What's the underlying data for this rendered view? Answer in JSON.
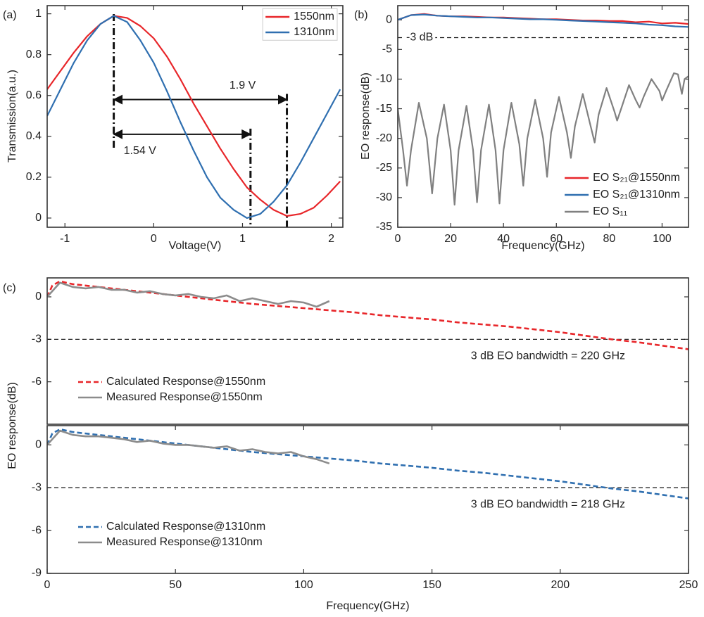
{
  "chart_data": [
    {
      "type": "line",
      "panel_label": "(a)",
      "xlabel": "Voltage(V)",
      "ylabel": "Transmission(a.u.)",
      "xlim": [
        -1.2,
        2.13
      ],
      "ylim": [
        -0.045,
        1.04
      ],
      "xticks": [
        -1,
        0,
        1,
        2
      ],
      "yticks": [
        0,
        0.2,
        0.4,
        0.6,
        0.8,
        1
      ],
      "legend": "northeast",
      "series": [
        {
          "name": "1550nm",
          "color": "#e8262a",
          "x": [
            -1.2,
            -1.05,
            -0.9,
            -0.75,
            -0.6,
            -0.45,
            -0.3,
            -0.15,
            0,
            0.15,
            0.3,
            0.45,
            0.6,
            0.75,
            0.9,
            1.05,
            1.2,
            1.35,
            1.5,
            1.65,
            1.8,
            1.95,
            2.1
          ],
          "values": [
            0.63,
            0.72,
            0.81,
            0.89,
            0.95,
            0.99,
            0.98,
            0.94,
            0.88,
            0.79,
            0.68,
            0.56,
            0.45,
            0.34,
            0.24,
            0.15,
            0.09,
            0.04,
            0.01,
            0.02,
            0.05,
            0.11,
            0.18
          ]
        },
        {
          "name": "1310nm",
          "color": "#2f6fb0",
          "x": [
            -1.2,
            -1.05,
            -0.9,
            -0.75,
            -0.6,
            -0.45,
            -0.3,
            -0.15,
            0,
            0.15,
            0.3,
            0.45,
            0.6,
            0.75,
            0.9,
            1.05,
            1.2,
            1.35,
            1.5,
            1.65,
            1.8,
            1.95,
            2.1
          ],
          "values": [
            0.5,
            0.63,
            0.76,
            0.87,
            0.95,
            0.99,
            0.96,
            0.87,
            0.76,
            0.62,
            0.47,
            0.33,
            0.2,
            0.1,
            0.04,
            0.0,
            0.02,
            0.08,
            0.16,
            0.27,
            0.39,
            0.51,
            0.63
          ]
        }
      ],
      "arrows": [
        {
          "label": "1.9 V",
          "from": -0.45,
          "to": 1.5,
          "y": 0.58
        },
        {
          "label": "1.54 V",
          "from": -0.45,
          "to": 1.09,
          "y": 0.41
        }
      ]
    },
    {
      "type": "line",
      "panel_label": "(b)",
      "xlabel": "Frequency(GHz)",
      "ylabel": "EO response(dB)",
      "xlim": [
        0,
        110
      ],
      "ylim": [
        -35,
        2.4
      ],
      "xticks": [
        0,
        20,
        40,
        60,
        80,
        100
      ],
      "yticks": [
        -35,
        -30,
        -25,
        -20,
        -15,
        -10,
        -5,
        0
      ],
      "legend": "southeast",
      "hline": -3,
      "hline_label": "-3 dB",
      "series": [
        {
          "name": "EO S₂₁@1550nm",
          "color": "#e8262a",
          "x": [
            0,
            5,
            10,
            15,
            20,
            25,
            30,
            35,
            40,
            45,
            50,
            55,
            60,
            65,
            70,
            75,
            80,
            85,
            90,
            95,
            100,
            105,
            110
          ],
          "values": [
            0,
            0.8,
            1,
            0.7,
            0.6,
            0.6,
            0.5,
            0.4,
            0.4,
            0.3,
            0.2,
            0.1,
            0.1,
            0,
            -0.1,
            -0.1,
            -0.2,
            -0.2,
            -0.4,
            -0.3,
            -0.6,
            -0.5,
            -0.7
          ]
        },
        {
          "name": "EO S₂₁@1310nm",
          "color": "#2f6fb0",
          "x": [
            0,
            5,
            10,
            15,
            20,
            25,
            30,
            35,
            40,
            45,
            50,
            55,
            60,
            65,
            70,
            75,
            80,
            85,
            90,
            95,
            100,
            105,
            110
          ],
          "values": [
            0,
            0.8,
            0.9,
            0.7,
            0.6,
            0.5,
            0.4,
            0.4,
            0.3,
            0.2,
            0.1,
            0.1,
            0,
            -0.1,
            -0.2,
            -0.3,
            -0.4,
            -0.5,
            -0.6,
            -0.8,
            -0.9,
            -1.1,
            -1.2
          ]
        },
        {
          "name": "EO S₁₁",
          "color": "#808080",
          "x": [
            0,
            2,
            3.5,
            5,
            8,
            11,
            13,
            15,
            17.5,
            20,
            21.5,
            23,
            26,
            28.5,
            30,
            31.5,
            34.5,
            37,
            38.5,
            40,
            43,
            46,
            47.5,
            49,
            52,
            55,
            56.5,
            58,
            61,
            64,
            65.5,
            67,
            70,
            73,
            74.5,
            76,
            79,
            82,
            83,
            84.5,
            87.5,
            90,
            91.5,
            93,
            96,
            99,
            100,
            101.5,
            104.5,
            106,
            107.5,
            108.5,
            110
          ],
          "values": [
            -15,
            -22,
            -28,
            -22,
            -14,
            -20,
            -29.3,
            -20,
            -14.3,
            -22,
            -31.2,
            -22,
            -14.5,
            -22,
            -30.8,
            -22,
            -14.3,
            -22,
            -31,
            -22,
            -14,
            -21,
            -28,
            -20,
            -13.5,
            -20,
            -26.5,
            -19,
            -13,
            -19,
            -23.3,
            -18,
            -12.5,
            -18,
            -20.7,
            -16,
            -11.5,
            -15.5,
            -17,
            -15,
            -11,
            -13.5,
            -14.8,
            -13,
            -10,
            -12,
            -13.6,
            -12,
            -9,
            -9.2,
            -12.5,
            -10,
            -9.5
          ]
        }
      ]
    },
    {
      "type": "line",
      "panel_label": "(c)",
      "xlim": [
        0,
        250
      ],
      "ylim": [
        -9,
        1.34
      ],
      "yticks": [
        -6,
        -3,
        0
      ],
      "legend": "southwest",
      "hline": -3,
      "note": "3 dB EO bandwidth = 220 GHz",
      "series": [
        {
          "name": "Calculated Response@1550nm",
          "color": "#e8262a",
          "line_style": "dashed",
          "x": [
            0,
            2,
            5,
            10,
            20,
            30,
            40,
            50,
            60,
            70,
            80,
            90,
            100,
            110,
            120,
            130,
            140,
            150,
            160,
            170,
            180,
            190,
            200,
            210,
            220,
            230,
            240,
            250
          ],
          "values": [
            0,
            0.8,
            1.1,
            0.9,
            0.7,
            0.5,
            0.3,
            0.1,
            -0.1,
            -0.3,
            -0.5,
            -0.65,
            -0.8,
            -0.95,
            -1.1,
            -1.3,
            -1.45,
            -1.6,
            -1.8,
            -1.95,
            -2.1,
            -2.3,
            -2.5,
            -2.75,
            -3.0,
            -3.2,
            -3.45,
            -3.7
          ]
        },
        {
          "name": "Measured Response@1550nm",
          "color": "#8c8c8c",
          "x": [
            0,
            5,
            10,
            15,
            20,
            25,
            30,
            35,
            40,
            45,
            50,
            55,
            60,
            65,
            70,
            75,
            80,
            85,
            90,
            95,
            100,
            105,
            110
          ],
          "values": [
            0,
            1.0,
            0.7,
            0.6,
            0.7,
            0.5,
            0.5,
            0.3,
            0.4,
            0.2,
            0.1,
            0.2,
            0,
            -0.1,
            0.1,
            -0.3,
            -0.1,
            -0.3,
            -0.5,
            -0.3,
            -0.4,
            -0.7,
            -0.3
          ]
        }
      ]
    },
    {
      "type": "line",
      "xlabel": "Frequency(GHz)",
      "ylabel": "EO  response(dB)",
      "xlim": [
        0,
        250
      ],
      "ylim": [
        -9,
        1.35
      ],
      "xticks": [
        0,
        50,
        100,
        150,
        200,
        250
      ],
      "yticks": [
        -9,
        -6,
        -3,
        0
      ],
      "legend": "southwest",
      "hline": -3,
      "note": "3 dB EO bandwidth = 218 GHz",
      "series": [
        {
          "name": "Calculated Response@1310nm",
          "color": "#2f6fb0",
          "line_style": "dashed",
          "x": [
            0,
            2,
            5,
            10,
            20,
            30,
            40,
            50,
            60,
            70,
            80,
            90,
            100,
            110,
            120,
            130,
            140,
            150,
            160,
            170,
            180,
            190,
            200,
            210,
            220,
            230,
            240,
            250
          ],
          "values": [
            0,
            0.8,
            1.1,
            0.9,
            0.7,
            0.5,
            0.3,
            0.1,
            -0.1,
            -0.3,
            -0.5,
            -0.65,
            -0.8,
            -0.95,
            -1.1,
            -1.3,
            -1.45,
            -1.6,
            -1.8,
            -1.95,
            -2.15,
            -2.35,
            -2.55,
            -2.8,
            -3.05,
            -3.25,
            -3.5,
            -3.75
          ]
        },
        {
          "name": "Measured Response@1310nm",
          "color": "#8c8c8c",
          "x": [
            0,
            5,
            10,
            15,
            20,
            25,
            30,
            35,
            40,
            45,
            50,
            55,
            60,
            65,
            70,
            75,
            80,
            85,
            90,
            95,
            100,
            105,
            110
          ],
          "values": [
            0,
            1.0,
            0.7,
            0.6,
            0.6,
            0.5,
            0.4,
            0.2,
            0.3,
            0.1,
            0,
            0,
            -0.1,
            -0.2,
            -0.1,
            -0.4,
            -0.3,
            -0.5,
            -0.6,
            -0.5,
            -0.8,
            -1.0,
            -1.3
          ]
        }
      ]
    }
  ]
}
